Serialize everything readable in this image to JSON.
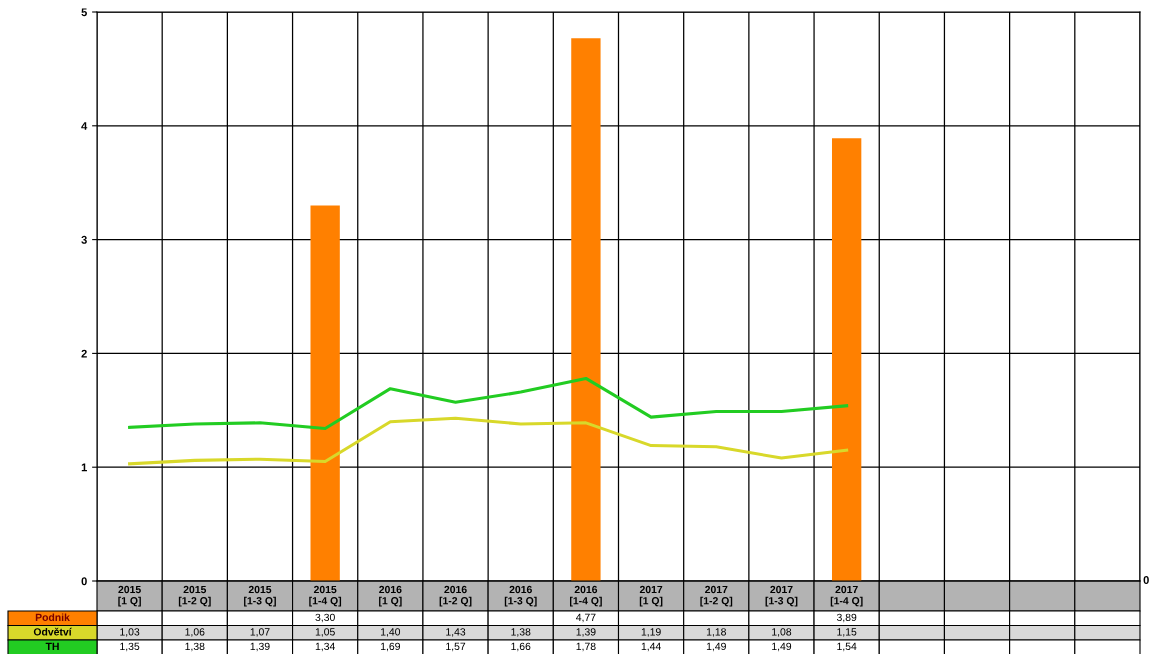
{
  "chart_data": {
    "type": "bar",
    "categories": [
      "2015\n[1 Q]",
      "2015\n[1-2 Q]",
      "2015\n[1-3 Q]",
      "2015\n[1-4 Q]",
      "2016\n[1 Q]",
      "2016\n[1-2 Q]",
      "2016\n[1-3 Q]",
      "2016\n[1-4 Q]",
      "2017\n[1 Q]",
      "2017\n[1-2 Q]",
      "2017\n[1-3 Q]",
      "2017\n[1-4 Q]",
      null,
      null,
      null,
      null
    ],
    "series": [
      {
        "name": "Podnik",
        "color": "#ff8000",
        "values": [
          null,
          null,
          null,
          3.3,
          null,
          null,
          null,
          4.77,
          null,
          null,
          null,
          3.89,
          null,
          null,
          null,
          null
        ],
        "value_labels": [
          null,
          null,
          null,
          "3,30",
          null,
          null,
          null,
          "4,77",
          null,
          null,
          null,
          "3,89",
          null,
          null,
          null,
          null
        ]
      },
      {
        "name": "Odvětví",
        "type": "line",
        "color": "#d8d82a",
        "values": [
          1.03,
          1.06,
          1.07,
          1.05,
          1.4,
          1.43,
          1.38,
          1.39,
          1.19,
          1.18,
          1.08,
          1.15,
          null,
          null,
          null,
          null
        ],
        "value_labels": [
          "1,03",
          "1,06",
          "1,07",
          "1,05",
          "1,40",
          "1,43",
          "1,38",
          "1,39",
          "1,19",
          "1,18",
          "1,08",
          "1,15",
          null,
          null,
          null,
          null
        ]
      },
      {
        "name": "TH",
        "type": "line",
        "color": "#22cc22",
        "values": [
          1.35,
          1.38,
          1.39,
          1.34,
          1.69,
          1.57,
          1.66,
          1.78,
          1.44,
          1.49,
          1.49,
          1.54,
          null,
          null,
          null,
          null
        ],
        "value_labels": [
          "1,35",
          "1,38",
          "1,39",
          "1,34",
          "1,69",
          "1,57",
          "1,66",
          "1,78",
          "1,44",
          "1,49",
          "1,49",
          "1,54",
          null,
          null,
          null,
          null
        ]
      }
    ],
    "ylim": [
      0,
      5
    ],
    "yticks": [
      0,
      1,
      2,
      3,
      4,
      5
    ],
    "annotations": [
      "0"
    ],
    "grid": true,
    "legend": "bottom left",
    "marker": "none",
    "line_style": "solid"
  }
}
